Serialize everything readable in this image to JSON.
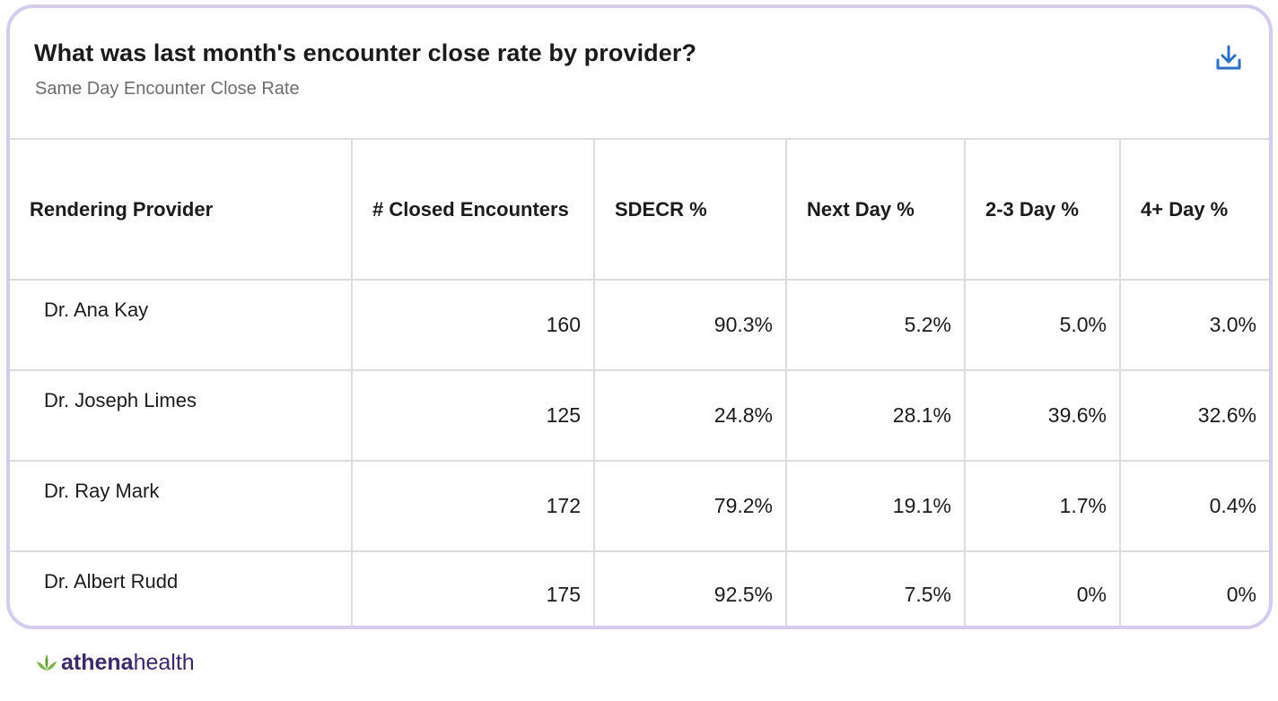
{
  "header": {
    "title": "What was last month's encounter close rate by provider?",
    "subtitle": "Same Day Encounter Close Rate",
    "download_icon": "download-icon"
  },
  "table": {
    "columns": [
      "Rendering Provider",
      "# Closed Encounters",
      "SDECR %",
      "Next Day %",
      "2-3 Day %",
      "4+ Day %"
    ],
    "rows": [
      [
        "Dr. Ana Kay",
        "160",
        "90.3%",
        "5.2%",
        "5.0%",
        "3.0%"
      ],
      [
        "Dr. Joseph Limes",
        "125",
        "24.8%",
        "28.1%",
        "39.6%",
        "32.6%"
      ],
      [
        "Dr. Ray Mark",
        "172",
        "79.2%",
        "19.1%",
        "1.7%",
        "0.4%"
      ],
      [
        "Dr. Albert Rudd",
        "175",
        "92.5%",
        "7.5%",
        "0%",
        "0%"
      ]
    ]
  },
  "footer": {
    "brand_bold": "athena",
    "brand_light": "health",
    "brand_icon": "leaf-logo-icon"
  },
  "colors": {
    "card_border": "#d6cbed",
    "accent_icon": "#2a6fc9",
    "brand": "#3b2a6b",
    "brand_leaf": "#7ab648"
  }
}
